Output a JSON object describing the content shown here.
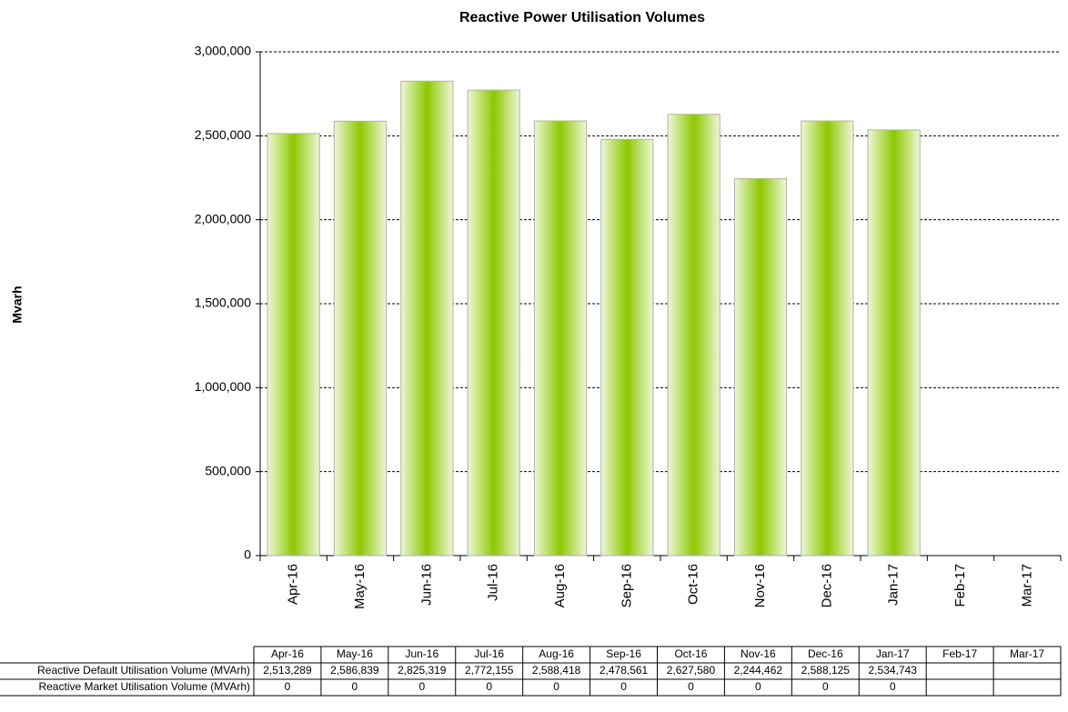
{
  "chart_data": {
    "type": "bar",
    "title": "Reactive Power Utilisation Volumes",
    "y_label": "Mvarh",
    "categories": [
      "Apr-16",
      "May-16",
      "Jun-16",
      "Jul-16",
      "Aug-16",
      "Sep-16",
      "Oct-16",
      "Nov-16",
      "Dec-16",
      "Jan-17",
      "Feb-17",
      "Mar-17"
    ],
    "series": [
      {
        "name": "Reactive Default Utilisation Volume (MVArh)",
        "color": "#8cc800",
        "values": [
          2513289,
          2586839,
          2825319,
          2772155,
          2588418,
          2478561,
          2627580,
          2244462,
          2588125,
          2534743,
          null,
          null
        ],
        "value_labels": [
          "2,513,289",
          "2,586,839",
          "2,825,319",
          "2,772,155",
          "2,588,418",
          "2,478,561",
          "2,627,580",
          "2,244,462",
          "2,588,125",
          "2,534,743",
          null,
          null
        ]
      },
      {
        "name": "Reactive Market Utilisation Volume (MVArh)",
        "color": "#4472c4",
        "values": [
          0,
          0,
          0,
          0,
          0,
          0,
          0,
          0,
          0,
          0,
          null,
          null
        ]
      }
    ],
    "ylim": [
      0,
      3000000
    ],
    "yticks": [
      0,
      {
        "value": 500000,
        "label": "500,000"
      },
      {
        "value": 1000000,
        "label": "1,000,000"
      },
      {
        "value": 1500000,
        "label": "1,500,000"
      },
      {
        "value": 2000000,
        "label": "2,000,000"
      },
      {
        "value": 2500000,
        "label": "2,500,000"
      },
      {
        "value": 3000000,
        "label": "3,000,000"
      }
    ],
    "grid": true
  }
}
